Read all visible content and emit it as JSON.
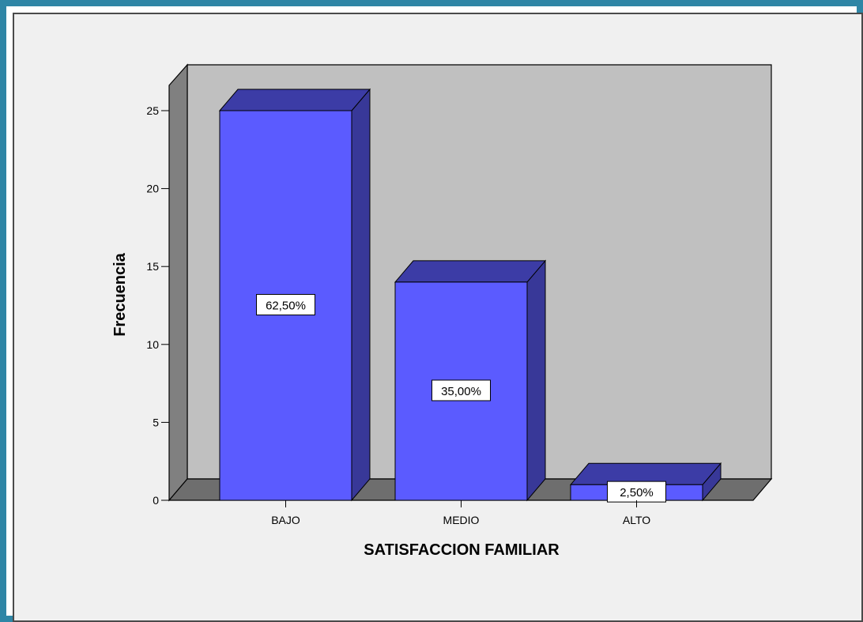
{
  "chart_data": {
    "type": "bar",
    "categories": [
      "BAJO",
      "MEDIO",
      "ALTO"
    ],
    "values": [
      25,
      14,
      1
    ],
    "percent_labels": [
      "62,50%",
      "35,00%",
      "2,50%"
    ],
    "xlabel": "SATISFACCION FAMILIAR",
    "ylabel": "Frecuencia",
    "ylim": [
      0,
      25
    ],
    "yticks": [
      0,
      5,
      10,
      15,
      20,
      25
    ],
    "grid": false,
    "style": "3d",
    "colors": {
      "bar_front": "#5b5bff",
      "bar_side": "#383898",
      "bar_top": "#3c3ca6",
      "back_wall": "#c0c0c0",
      "side_wall": "#808080",
      "floor": "#6e6e6e",
      "frame": "#2f86a6",
      "background": "#f0f0f0"
    }
  }
}
